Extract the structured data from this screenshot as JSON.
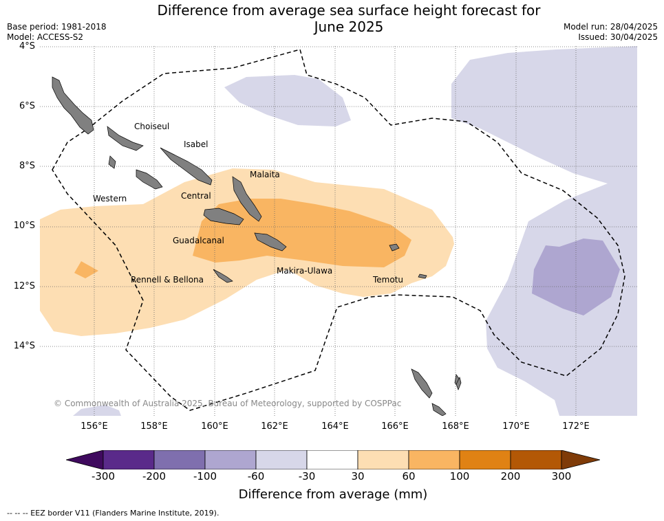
{
  "title": "Difference from average sea surface height forecast for June 2025",
  "title_line1": "Difference from average sea surface height forecast for",
  "title_line2": "June 2025",
  "meta": {
    "base_period": "Base period: 1981-2018",
    "model": "Model: ACCESS-S2",
    "model_run": "Model run: 28/04/2025",
    "issued": "Issued: 30/04/2025"
  },
  "map": {
    "lat_labels": [
      "4°S",
      "6°S",
      "8°S",
      "10°S",
      "12°S",
      "14°S"
    ],
    "lon_labels": [
      "156°E",
      "158°E",
      "160°E",
      "162°E",
      "164°E",
      "166°E",
      "168°E",
      "170°E",
      "172°E"
    ],
    "regions": [
      "Choiseul",
      "Isabel",
      "Malaita",
      "Western",
      "Central",
      "Guadalcanal",
      "Makira-Ulawa",
      "Temotu",
      "Rennell & Bellona"
    ],
    "copyright": "© Commonwealth of Australia 2025, Bureau of Meteorology, supported by COSPPac",
    "land_color": "#808080",
    "eez_line_style": "dashed"
  },
  "colorbar": {
    "title": "Difference from average (mm)",
    "ticks": [
      "-300",
      "-200",
      "-100",
      "-60",
      "-30",
      "30",
      "60",
      "100",
      "200",
      "300"
    ],
    "colors": [
      "#3f0a5e",
      "#5a2a8a",
      "#7f6fae",
      "#aea6d0",
      "#d7d7e9",
      "#ffffff",
      "#fddeb3",
      "#f9b562",
      "#e08214",
      "#b35806",
      "#7f3b08"
    ]
  },
  "footnote": "--  --  -- EEZ border V11 (Flanders Marine Institute, 2019)."
}
